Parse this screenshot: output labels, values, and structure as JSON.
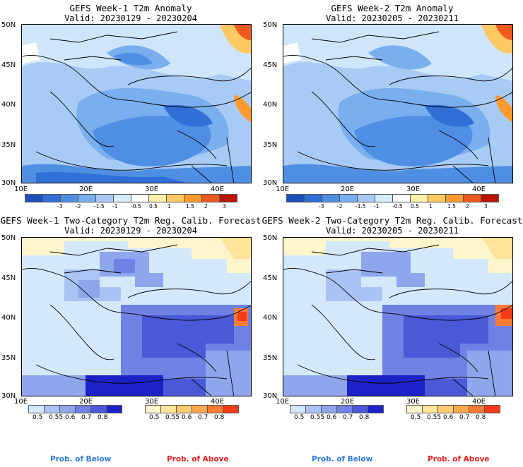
{
  "panels": [
    {
      "title": "GEFS Week-1 T2m Anomaly",
      "valid": "Valid: 20230129 - 20230204",
      "kind": "anomaly"
    },
    {
      "title": "GEFS Week-2 T2m Anomaly",
      "valid": "Valid: 20230205 - 20230211",
      "kind": "anomaly"
    },
    {
      "title": "GEFS Week-1 Two-Category T2m Reg. Calib. Forecast",
      "valid": "Valid: 20230129 - 20230204",
      "kind": "prob"
    },
    {
      "title": "GEFS Week-2 Two-Category T2m Reg. Calib. Forecast",
      "valid": "Valid: 20230205 - 20230211",
      "kind": "prob"
    }
  ],
  "axes": {
    "lat_labels": [
      "50N",
      "45N",
      "40N",
      "35N",
      "30N"
    ],
    "lon_labels": [
      "10E",
      "20E",
      "30E",
      "40E"
    ]
  },
  "anomaly_colorbar": {
    "ticks": [
      "-3",
      "-2",
      "-1.5",
      "-1",
      "-0.5",
      "0.5",
      "1",
      "1.5",
      "2",
      "3"
    ],
    "colors": [
      "#1c4fb8",
      "#2f6fd6",
      "#4f8fe3",
      "#79aeef",
      "#a8cbf5",
      "#d8ebfb",
      "#ffffff",
      "#fff0a8",
      "#ffc860",
      "#ff9a30",
      "#f05a1e",
      "#b81408"
    ]
  },
  "prob_below": {
    "label": "Prob. of Below",
    "ticks": [
      "0.5",
      "0.55",
      "0.6",
      "0.7",
      "0.8"
    ],
    "colors": [
      "#d4e8fb",
      "#a9c4f4",
      "#8ea6ec",
      "#6f82e4",
      "#4a59d8",
      "#1d22c8"
    ]
  },
  "prob_above": {
    "label": "Prob. of Above",
    "ticks": [
      "0.5",
      "0.55",
      "0.6",
      "0.7",
      "0.8"
    ],
    "colors": [
      "#fff5cc",
      "#ffe49a",
      "#ffcc70",
      "#ffa850",
      "#ff7a34",
      "#f43c18"
    ]
  },
  "footer": {
    "below_color": "#2a7ad8",
    "above_color": "#e02020"
  }
}
